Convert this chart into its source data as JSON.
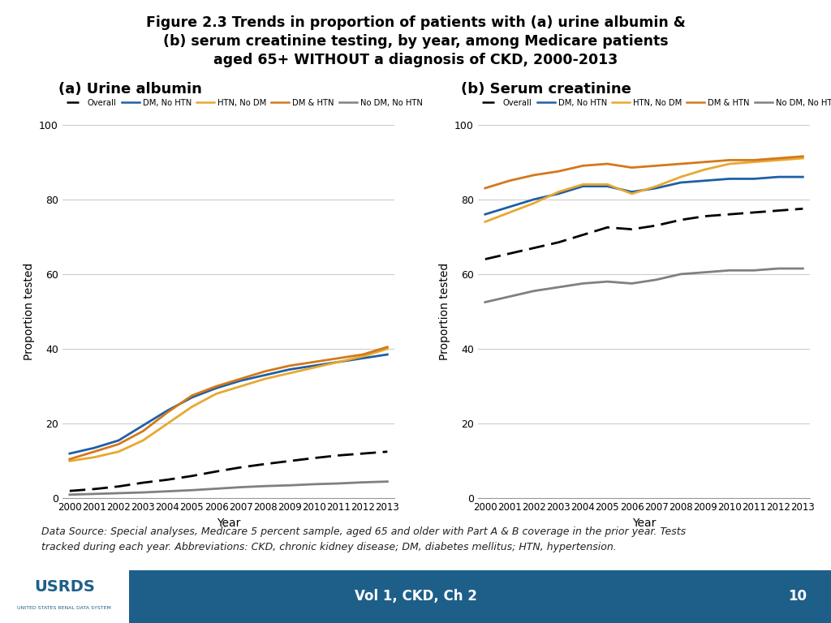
{
  "title_line1": "Figure 2.3 Trends in proportion of patients with (a) urine albumin &",
  "title_line2": "(b) serum creatinine testing, by year, among Medicare patients",
  "title_line3": "aged 65+ WITHOUT a diagnosis of CKD, 2000-2013",
  "subtitle_a": "(a) Urine albumin",
  "subtitle_b": "(b) Serum creatinine",
  "years": [
    2000,
    2001,
    2002,
    2003,
    2004,
    2005,
    2006,
    2007,
    2008,
    2009,
    2010,
    2011,
    2012,
    2013
  ],
  "urine_albumin": {
    "Overall": [
      2.0,
      2.5,
      3.2,
      4.2,
      5.0,
      6.0,
      7.2,
      8.3,
      9.2,
      10.0,
      10.8,
      11.5,
      12.0,
      12.5
    ],
    "DM_No_HTN": [
      12.0,
      13.5,
      15.5,
      19.5,
      23.5,
      27.0,
      29.5,
      31.5,
      33.0,
      34.5,
      35.5,
      36.5,
      37.5,
      38.5
    ],
    "HTN_No_DM": [
      10.0,
      11.0,
      12.5,
      15.5,
      20.0,
      24.5,
      28.0,
      30.0,
      32.0,
      33.5,
      35.0,
      36.5,
      38.0,
      40.0
    ],
    "DM_HTN": [
      10.5,
      12.5,
      14.5,
      18.0,
      23.0,
      27.5,
      30.0,
      32.0,
      34.0,
      35.5,
      36.5,
      37.5,
      38.5,
      40.5
    ],
    "No_DM_No_HTN": [
      1.0,
      1.2,
      1.4,
      1.6,
      1.9,
      2.2,
      2.6,
      3.0,
      3.3,
      3.5,
      3.8,
      4.0,
      4.3,
      4.5
    ]
  },
  "serum_creatinine": {
    "Overall": [
      64.0,
      65.5,
      67.0,
      68.5,
      70.5,
      72.5,
      72.0,
      73.0,
      74.5,
      75.5,
      76.0,
      76.5,
      77.0,
      77.5
    ],
    "DM_No_HTN": [
      76.0,
      78.0,
      80.0,
      81.5,
      83.5,
      83.5,
      82.0,
      83.0,
      84.5,
      85.0,
      85.5,
      85.5,
      86.0,
      86.0
    ],
    "HTN_No_DM": [
      74.0,
      76.5,
      79.0,
      82.0,
      84.0,
      84.0,
      81.5,
      83.5,
      86.0,
      88.0,
      89.5,
      90.0,
      90.5,
      91.0
    ],
    "DM_HTN": [
      83.0,
      85.0,
      86.5,
      87.5,
      89.0,
      89.5,
      88.5,
      89.0,
      89.5,
      90.0,
      90.5,
      90.5,
      91.0,
      91.5
    ],
    "No_DM_No_HTN": [
      52.5,
      54.0,
      55.5,
      56.5,
      57.5,
      58.0,
      57.5,
      58.5,
      60.0,
      60.5,
      61.0,
      61.0,
      61.5,
      61.5
    ]
  },
  "colors": {
    "Overall": "#000000",
    "DM_No_HTN": "#1f5fa6",
    "HTN_No_DM": "#e8a830",
    "DM_HTN": "#d4781a",
    "No_DM_No_HTN": "#808080"
  },
  "ylabel": "Proportion tested",
  "xlabel": "Year",
  "footer_text1": "Data Source: Special analyses, Medicare 5 percent sample, aged 65 and older with Part A & B coverage in the prior year. Tests",
  "footer_text2": "tracked during each year. Abbreviations: CKD, chronic kidney disease; DM, diabetes mellitus; HTN, hypertension.",
  "footer_bar_text": "Vol 1, CKD, Ch 2",
  "footer_bar_page": "10",
  "footer_bar_color": "#1e5f8a",
  "background_color": "#ffffff"
}
